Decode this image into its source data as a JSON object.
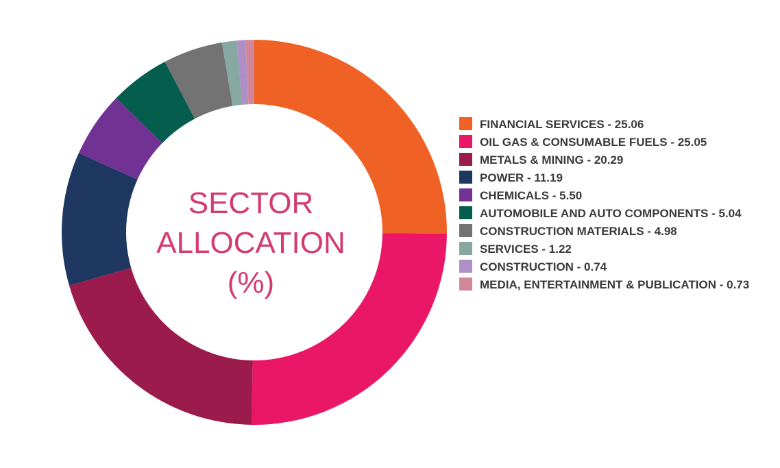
{
  "chart_data": {
    "type": "pie",
    "title_lines": [
      "SECTOR",
      "ALLOCATION",
      "(%)"
    ],
    "slices": [
      {
        "label": "FINANCIAL SERVICES",
        "value": 25.06,
        "color": "#f06125",
        "legend": "FINANCIAL SERVICES - 25.06"
      },
      {
        "label": "OIL GAS & CONSUMABLE FUELS",
        "value": 25.05,
        "color": "#ea1666",
        "legend": "OIL GAS & CONSUMABLE FUELS - 25.05"
      },
      {
        "label": "METALS & MINING",
        "value": 20.29,
        "color": "#9b1b4c",
        "legend": "METALS & MINING - 20.29"
      },
      {
        "label": "POWER",
        "value": 11.19,
        "color": "#1e3862",
        "legend": "POWER - 11.19"
      },
      {
        "label": "CHEMICALS",
        "value": 5.5,
        "color": "#713294",
        "legend": "CHEMICALS - 5.50"
      },
      {
        "label": "AUTOMOBILE AND AUTO COMPONENTS",
        "value": 5.04,
        "color": "#045d4d",
        "legend": "AUTOMOBILE AND AUTO COMPONENTS - 5.04"
      },
      {
        "label": "CONSTRUCTION MATERIALS",
        "value": 4.98,
        "color": "#737373",
        "legend": "CONSTRUCTION MATERIALS - 4.98"
      },
      {
        "label": "SERVICES",
        "value": 1.22,
        "color": "#86a8a0",
        "legend": "SERVICES - 1.22"
      },
      {
        "label": "CONSTRUCTION",
        "value": 0.74,
        "color": "#ae8fc6",
        "legend": "CONSTRUCTION - 0.74"
      },
      {
        "label": "MEDIA, ENTERTAINMENT & PUBLICATION",
        "value": 0.73,
        "color": "#d08799",
        "legend": "MEDIA, ENTERTAINMENT & PUBLICATION - 0.73"
      }
    ],
    "legend_position": "right"
  }
}
